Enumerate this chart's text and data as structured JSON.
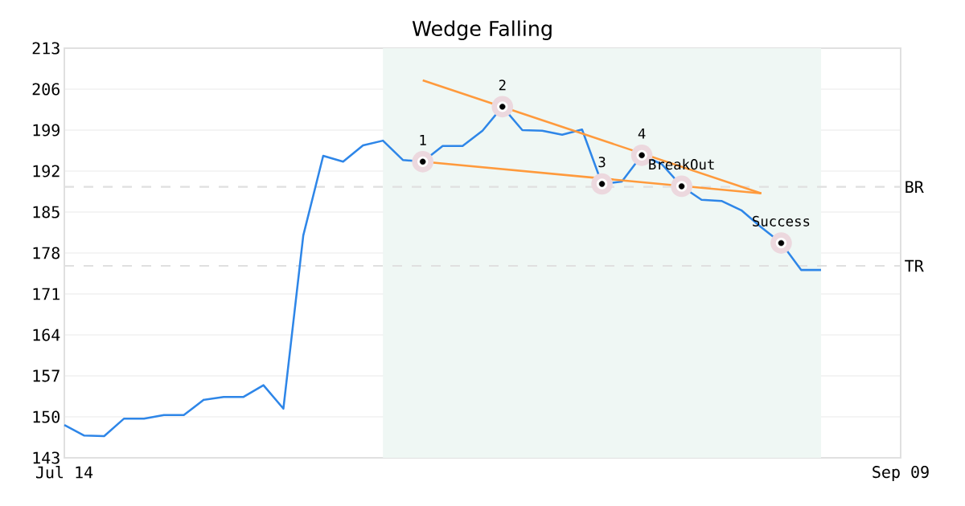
{
  "chart_data": {
    "type": "line",
    "title": "Wedge Falling",
    "categories": [
      "Jul 14",
      null,
      null,
      null,
      null,
      null,
      null,
      null,
      null,
      null,
      null,
      null,
      null,
      null,
      null,
      null,
      null,
      null,
      null,
      null,
      null,
      null,
      null,
      null,
      null,
      null,
      null,
      null,
      null,
      null,
      null,
      null,
      null,
      null,
      null,
      null,
      null,
      null,
      null,
      null,
      null,
      null,
      "Sep 09"
    ],
    "series": [
      {
        "color": "#2e86e8",
        "values": [
          148.6,
          146.8,
          146.7,
          149.7,
          149.7,
          150.3,
          150.3,
          152.9,
          153.4,
          153.4,
          155.4,
          151.4,
          181.0,
          194.6,
          193.6,
          196.4,
          197.2,
          193.9,
          193.6,
          196.3,
          196.3,
          198.9,
          203.0,
          199.0,
          198.9,
          198.2,
          199.1,
          189.8,
          190.2,
          194.7,
          193.2,
          189.4,
          187.1,
          186.9,
          185.3,
          182.4,
          179.7,
          175.1,
          175.1,
          null,
          null,
          null,
          null
        ]
      },
      {
        "type": "line",
        "color": "#ff9a3c",
        "values": [
          null,
          null,
          null,
          null,
          null,
          null,
          null,
          null,
          null,
          null,
          null,
          null,
          null,
          null,
          null,
          null,
          null,
          null,
          207.5,
          null,
          null,
          null,
          null,
          null,
          null,
          null,
          null,
          null,
          null,
          null,
          null,
          null,
          null,
          null,
          null,
          188.2,
          null,
          null,
          null,
          null,
          null,
          null,
          null
        ]
      },
      {
        "type": "line",
        "color": "#ff9a3c",
        "values": [
          null,
          null,
          null,
          null,
          null,
          null,
          null,
          null,
          null,
          null,
          null,
          null,
          null,
          null,
          null,
          null,
          null,
          null,
          193.6,
          null,
          null,
          null,
          null,
          null,
          null,
          null,
          null,
          null,
          null,
          null,
          null,
          null,
          null,
          null,
          null,
          188.2,
          null,
          null,
          null,
          null,
          null,
          null,
          null
        ]
      },
      {
        "type": "scatter",
        "color": "#000000",
        "values": [
          null,
          null,
          null,
          null,
          null,
          null,
          null,
          null,
          null,
          null,
          null,
          null,
          null,
          null,
          null,
          null,
          null,
          null,
          193.6,
          null,
          null,
          null,
          203.0,
          null,
          null,
          null,
          null,
          189.8,
          null,
          194.7,
          null,
          189.4,
          null,
          null,
          null,
          null,
          179.7,
          null,
          null,
          null,
          null,
          null,
          null
        ]
      }
    ],
    "annotations": [
      "1",
      "2",
      "3",
      "4",
      "BreakOut",
      "Success"
    ],
    "ylim": [
      143,
      213
    ],
    "yticks": [
      143,
      150,
      157,
      164,
      171,
      178,
      185,
      192,
      199,
      206,
      213
    ],
    "grid": "y",
    "line_style": "solid",
    "ref_lines": [
      {
        "axis": "y",
        "value": 189.3,
        "label": "BR",
        "color": "#e0e0e0",
        "line_style": "dashed"
      },
      {
        "axis": "y",
        "value": 175.8,
        "label": "TR",
        "color": "#e0e0e0",
        "line_style": "dashed"
      }
    ]
  }
}
